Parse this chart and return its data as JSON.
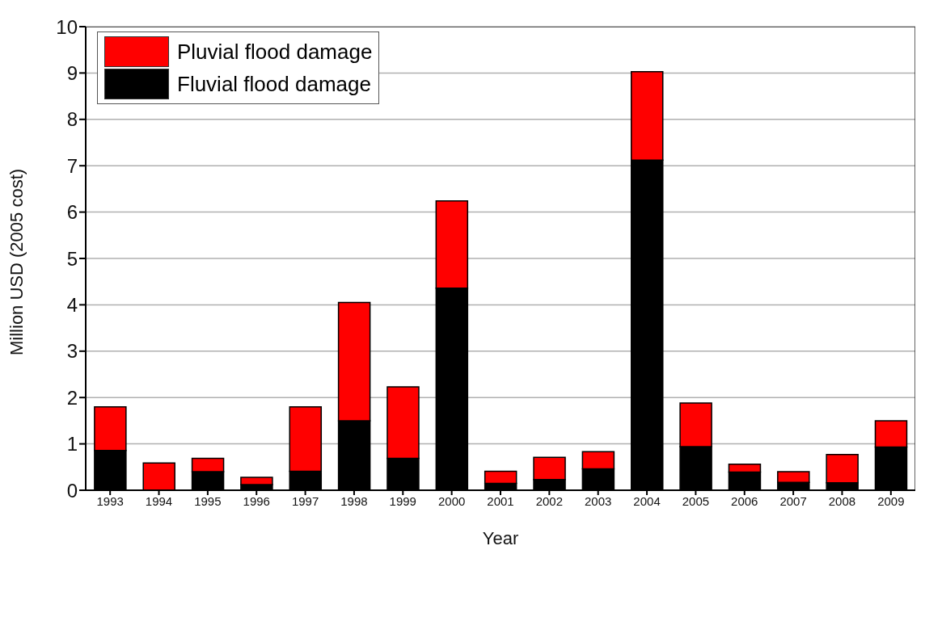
{
  "chart_data": {
    "type": "bar",
    "stacked": true,
    "xlabel": "Year",
    "ylabel": "Million USD (2005 cost)",
    "categories": [
      "1993",
      "1994",
      "1995",
      "1996",
      "1997",
      "1998",
      "1999",
      "2000",
      "2001",
      "2002",
      "2003",
      "2004",
      "2005",
      "2006",
      "2007",
      "2008",
      "2009"
    ],
    "series": [
      {
        "name": "Fluvial flood damage",
        "color": "#000000",
        "values": [
          0.86,
          0,
          0.4,
          0.12,
          0.41,
          1.5,
          0.69,
          4.36,
          0.15,
          0.23,
          0.46,
          7.12,
          0.94,
          0.39,
          0.17,
          0.16,
          0.93
        ]
      },
      {
        "name": "Pluvial flood damage",
        "color": "#ff0000",
        "values": [
          0.94,
          0.59,
          0.29,
          0.16,
          1.39,
          2.55,
          1.54,
          1.88,
          0.26,
          0.48,
          0.37,
          1.91,
          0.94,
          0.17,
          0.23,
          0.61,
          0.57
        ]
      }
    ],
    "ylim": [
      0,
      10
    ],
    "yticks": [
      0,
      1,
      2,
      3,
      4,
      5,
      6,
      7,
      8,
      9,
      10
    ],
    "grid": "y",
    "legend": "top left"
  }
}
